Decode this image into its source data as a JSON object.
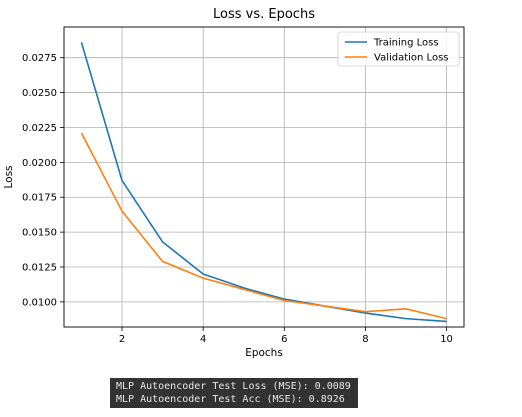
{
  "chart_data": {
    "type": "line",
    "title": "Loss vs. Epochs",
    "xlabel": "Epochs",
    "ylabel": "Loss",
    "x": [
      1,
      2,
      3,
      4,
      5,
      6,
      7,
      8,
      9,
      10
    ],
    "xlim": [
      0.57,
      10.43
    ],
    "ylim": [
      0.0082,
      0.0297
    ],
    "xticks": [
      2,
      4,
      6,
      8,
      10
    ],
    "yticks": [
      0.01,
      0.0125,
      0.015,
      0.0175,
      0.02,
      0.0225,
      0.025,
      0.0275
    ],
    "xtick_labels": [
      "2",
      "4",
      "6",
      "8",
      "10"
    ],
    "ytick_labels": [
      "0.0100",
      "0.0125",
      "0.0150",
      "0.0175",
      "0.0200",
      "0.0225",
      "0.0250",
      "0.0275"
    ],
    "grid": true,
    "legend_position": "top-right",
    "series": [
      {
        "name": "Training Loss",
        "color": "#1f77b4",
        "values": [
          0.0286,
          0.0187,
          0.0143,
          0.012,
          0.011,
          0.0102,
          0.0097,
          0.0092,
          0.0088,
          0.0086
        ]
      },
      {
        "name": "Validation Loss",
        "color": "#ff7f0e",
        "values": [
          0.0221,
          0.0165,
          0.0129,
          0.0117,
          0.0109,
          0.0101,
          0.0097,
          0.0093,
          0.0095,
          0.0088
        ]
      }
    ]
  },
  "console": {
    "line1": "MLP Autoencoder Test Loss (MSE): 0.0089",
    "line2": "MLP Autoencoder Test Acc (MSE): 0.8926"
  }
}
